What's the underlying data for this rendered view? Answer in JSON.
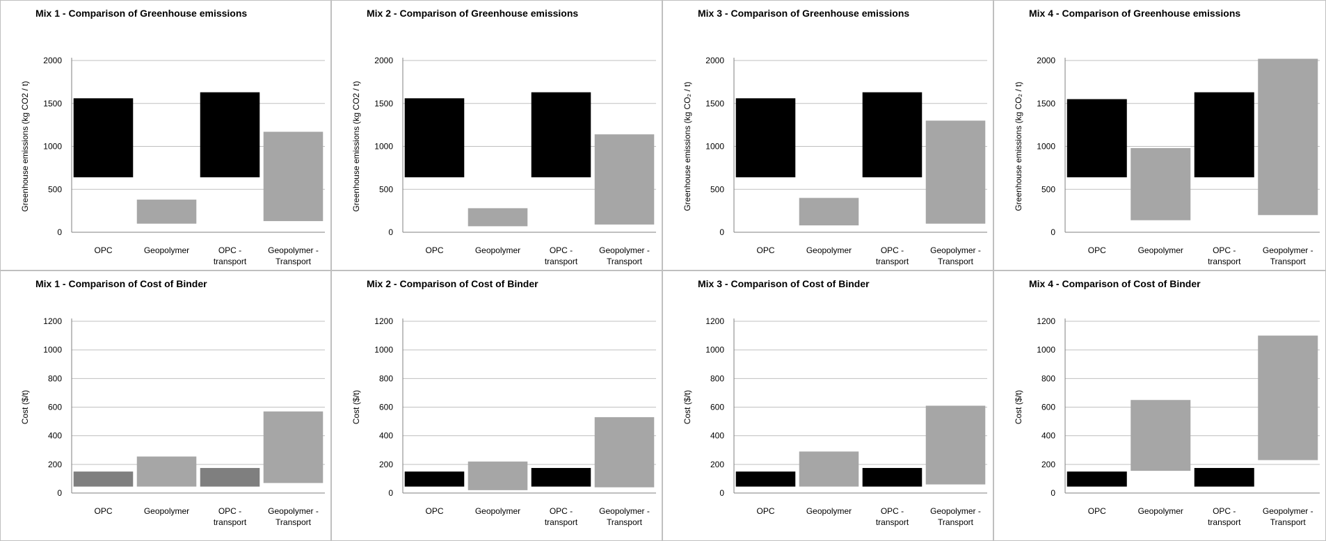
{
  "chart_data": [
    {
      "type": "bar",
      "subtype": "floating",
      "title": "Mix 1 - Comparison  of Greenhouse emissions",
      "ylabel": "Greenhouse emissions (kg CO2 / t)",
      "ylim": [
        0,
        2000
      ],
      "yticks": [
        0,
        500,
        1000,
        1500,
        2000
      ],
      "categories": [
        "OPC",
        "Geopolymer",
        "OPC - transport",
        "Geopolymer - Transport"
      ],
      "ranges": [
        [
          640,
          1560
        ],
        [
          100,
          380
        ],
        [
          640,
          1630
        ],
        [
          130,
          1170
        ]
      ],
      "colors": [
        "#000000",
        "#a6a6a6",
        "#000000",
        "#a6a6a6"
      ]
    },
    {
      "type": "bar",
      "subtype": "floating",
      "title": "Mix 2 - Comparison  of Greenhouse emissions",
      "ylabel": "Greenhouse emissions (kg CO2 / t)",
      "ylim": [
        0,
        2000
      ],
      "yticks": [
        0,
        500,
        1000,
        1500,
        2000
      ],
      "categories": [
        "OPC",
        "Geopolymer",
        "OPC - transport",
        "Geopolymer - Transport"
      ],
      "ranges": [
        [
          640,
          1560
        ],
        [
          70,
          280
        ],
        [
          640,
          1630
        ],
        [
          90,
          1140
        ]
      ],
      "colors": [
        "#000000",
        "#a6a6a6",
        "#000000",
        "#a6a6a6"
      ]
    },
    {
      "type": "bar",
      "subtype": "floating",
      "title": "Mix 3 - Comparison  of Greenhouse emissions",
      "ylabel": "Greenhouse emissions (kg CO₂ / t)",
      "ylim": [
        0,
        2000
      ],
      "yticks": [
        0,
        500,
        1000,
        1500,
        2000
      ],
      "categories": [
        "OPC",
        "Geopolymer",
        "OPC - transport",
        "Geopolymer - Transport"
      ],
      "ranges": [
        [
          640,
          1560
        ],
        [
          80,
          400
        ],
        [
          640,
          1630
        ],
        [
          100,
          1300
        ]
      ],
      "colors": [
        "#000000",
        "#a6a6a6",
        "#000000",
        "#a6a6a6"
      ]
    },
    {
      "type": "bar",
      "subtype": "floating",
      "title": "Mix 4 - Comparison  of Greenhouse emissions",
      "ylabel": "Greenhouse emissions (kg CO₂ / t)",
      "ylim": [
        0,
        2000
      ],
      "yticks": [
        0,
        500,
        1000,
        1500,
        2000
      ],
      "categories": [
        "OPC",
        "Geopolymer",
        "OPC - transport",
        "Geopolymer - Transport"
      ],
      "ranges": [
        [
          640,
          1550
        ],
        [
          140,
          980
        ],
        [
          640,
          1630
        ],
        [
          200,
          2020
        ]
      ],
      "colors": [
        "#000000",
        "#a6a6a6",
        "#000000",
        "#a6a6a6"
      ]
    },
    {
      "type": "bar",
      "subtype": "floating",
      "title": "Mix 1 - Comparison  of Cost of Binder",
      "ylabel": "Cost ($/t)",
      "ylim": [
        0,
        1200
      ],
      "yticks": [
        0,
        200,
        400,
        600,
        800,
        1000,
        1200
      ],
      "categories": [
        "OPC",
        "Geopolymer",
        "OPC - transport",
        "Geopolymer - Transport"
      ],
      "ranges": [
        [
          45,
          150
        ],
        [
          45,
          255
        ],
        [
          45,
          175
        ],
        [
          70,
          570
        ]
      ],
      "colors": [
        "#7f7f7f",
        "#a6a6a6",
        "#7f7f7f",
        "#a6a6a6"
      ]
    },
    {
      "type": "bar",
      "subtype": "floating",
      "title": "Mix 2 - Comparison  of Cost of Binder",
      "ylabel": "Cost ($/t)",
      "ylim": [
        0,
        1200
      ],
      "yticks": [
        0,
        200,
        400,
        600,
        800,
        1000,
        1200
      ],
      "categories": [
        "OPC",
        "Geopolymer",
        "OPC - transport",
        "Geopolymer - Transport"
      ],
      "ranges": [
        [
          45,
          150
        ],
        [
          20,
          220
        ],
        [
          45,
          175
        ],
        [
          40,
          530
        ]
      ],
      "colors": [
        "#000000",
        "#a6a6a6",
        "#000000",
        "#a6a6a6"
      ]
    },
    {
      "type": "bar",
      "subtype": "floating",
      "title": "Mix 3 - Comparison  of Cost of Binder",
      "ylabel": "Cost ($/t)",
      "ylim": [
        0,
        1200
      ],
      "yticks": [
        0,
        200,
        400,
        600,
        800,
        1000,
        1200
      ],
      "categories": [
        "OPC",
        "Geopolymer",
        "OPC - transport",
        "Geopolymer - Transport"
      ],
      "ranges": [
        [
          45,
          150
        ],
        [
          45,
          290
        ],
        [
          45,
          175
        ],
        [
          60,
          610
        ]
      ],
      "colors": [
        "#000000",
        "#a6a6a6",
        "#000000",
        "#a6a6a6"
      ]
    },
    {
      "type": "bar",
      "subtype": "floating",
      "title": "Mix 4 - Comparison  of Cost of Binder",
      "ylabel": "Cost ($/t)",
      "ylim": [
        0,
        1200
      ],
      "yticks": [
        0,
        200,
        400,
        600,
        800,
        1000,
        1200
      ],
      "categories": [
        "OPC",
        "Geopolymer",
        "OPC - transport",
        "Geopolymer - Transport"
      ],
      "ranges": [
        [
          45,
          150
        ],
        [
          155,
          650
        ],
        [
          45,
          175
        ],
        [
          230,
          1100
        ]
      ],
      "colors": [
        "#000000",
        "#a6a6a6",
        "#000000",
        "#a6a6a6"
      ]
    }
  ]
}
